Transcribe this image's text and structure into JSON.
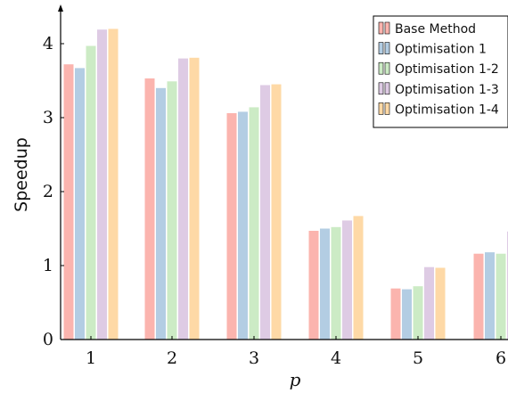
{
  "chart_data": {
    "type": "bar",
    "categories": [
      "1",
      "2",
      "3",
      "4",
      "5",
      "6"
    ],
    "series": [
      {
        "name": "Base Method",
        "color": "#fbb4ae",
        "values": [
          3.72,
          3.53,
          3.06,
          1.47,
          0.69,
          1.16
        ]
      },
      {
        "name": "Optimisation 1",
        "color": "#b3cde3",
        "values": [
          3.67,
          3.4,
          3.08,
          1.5,
          0.68,
          1.18
        ]
      },
      {
        "name": "Optimisation 1-2",
        "color": "#ccebc5",
        "values": [
          3.97,
          3.49,
          3.14,
          1.52,
          0.72,
          1.16
        ]
      },
      {
        "name": "Optimisation 1-3",
        "color": "#decbe4",
        "values": [
          4.19,
          3.8,
          3.44,
          1.61,
          0.98,
          1.46
        ]
      },
      {
        "name": "Optimisation 1-4",
        "color": "#fed9a6",
        "values": [
          4.2,
          3.81,
          3.45,
          1.67,
          0.97,
          null
        ]
      }
    ],
    "xlabel": "p",
    "ylabel": "Speedup",
    "ylim": [
      0,
      4.25
    ],
    "yticks": [
      "0",
      "1",
      "2",
      "3",
      "4"
    ],
    "grid": false,
    "legend_position": "top-right"
  }
}
